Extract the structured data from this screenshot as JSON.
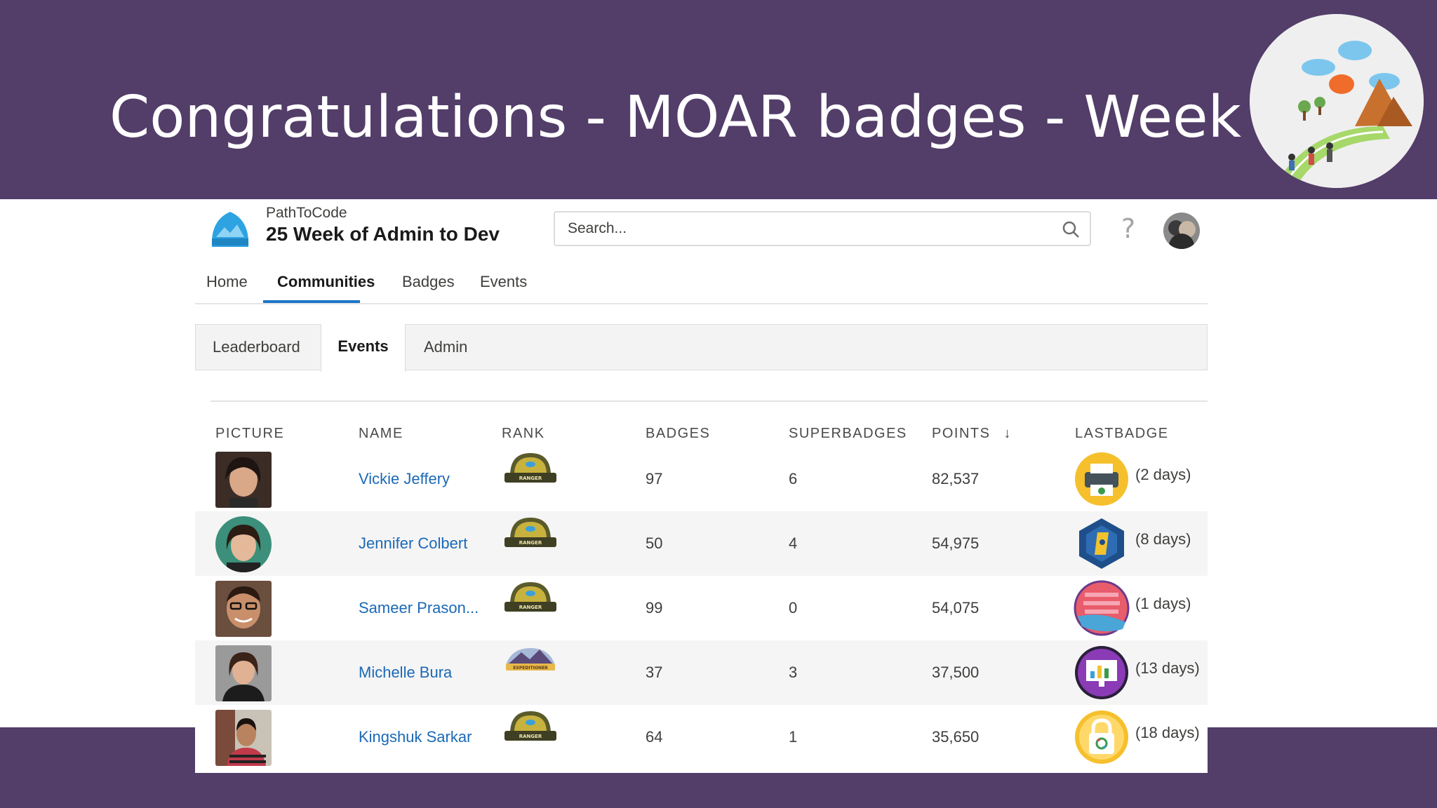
{
  "slide": {
    "title": "Congratulations - MOAR badges - Week 8"
  },
  "app": {
    "org_name": "PathToCode",
    "community_name": "25 Week of Admin to Dev"
  },
  "search": {
    "placeholder": "Search..."
  },
  "nav": {
    "tabs": [
      {
        "label": "Home"
      },
      {
        "label": "Communities",
        "active": true
      },
      {
        "label": "Badges"
      },
      {
        "label": "Events"
      }
    ]
  },
  "subtabs": [
    {
      "label": "Leaderboard"
    },
    {
      "label": "Events",
      "active": true
    },
    {
      "label": "Admin"
    }
  ],
  "table": {
    "columns": [
      "PICTURE",
      "NAME",
      "RANK",
      "BADGES",
      "SUPERBADGES",
      "POINTS",
      "LASTBADGE"
    ],
    "sort_indicator": "↓",
    "rows": [
      {
        "name": "Vickie Jeffery",
        "rank": "RANGER",
        "badges": "97",
        "superbadges": "6",
        "points": "82,537",
        "last_badge_age": "(2 days)",
        "last_badge_icon": "printer-badge-icon"
      },
      {
        "name": "Jennifer Colbert",
        "rank": "RANGER",
        "badges": "50",
        "superbadges": "4",
        "points": "54,975",
        "last_badge_age": "(8 days)",
        "last_badge_icon": "hexagon-badge-icon"
      },
      {
        "name": "Sameer Prason...",
        "rank": "RANGER",
        "badges": "99",
        "superbadges": "0",
        "points": "54,075",
        "last_badge_age": "(1 days)",
        "last_badge_icon": "binary-badge-icon"
      },
      {
        "name": "Michelle Bura",
        "rank": "EXPEDITIONER",
        "badges": "37",
        "superbadges": "3",
        "points": "37,500",
        "last_badge_age": "(13 days)",
        "last_badge_icon": "chart-badge-icon"
      },
      {
        "name": "Kingshuk Sarkar",
        "rank": "RANGER",
        "badges": "64",
        "superbadges": "1",
        "points": "35,650",
        "last_badge_age": "(18 days)",
        "last_badge_icon": "lock-badge-icon"
      }
    ]
  },
  "colors": {
    "slide_band": "#533d69",
    "link": "#1b69b6",
    "accent": "#1b76c9"
  }
}
